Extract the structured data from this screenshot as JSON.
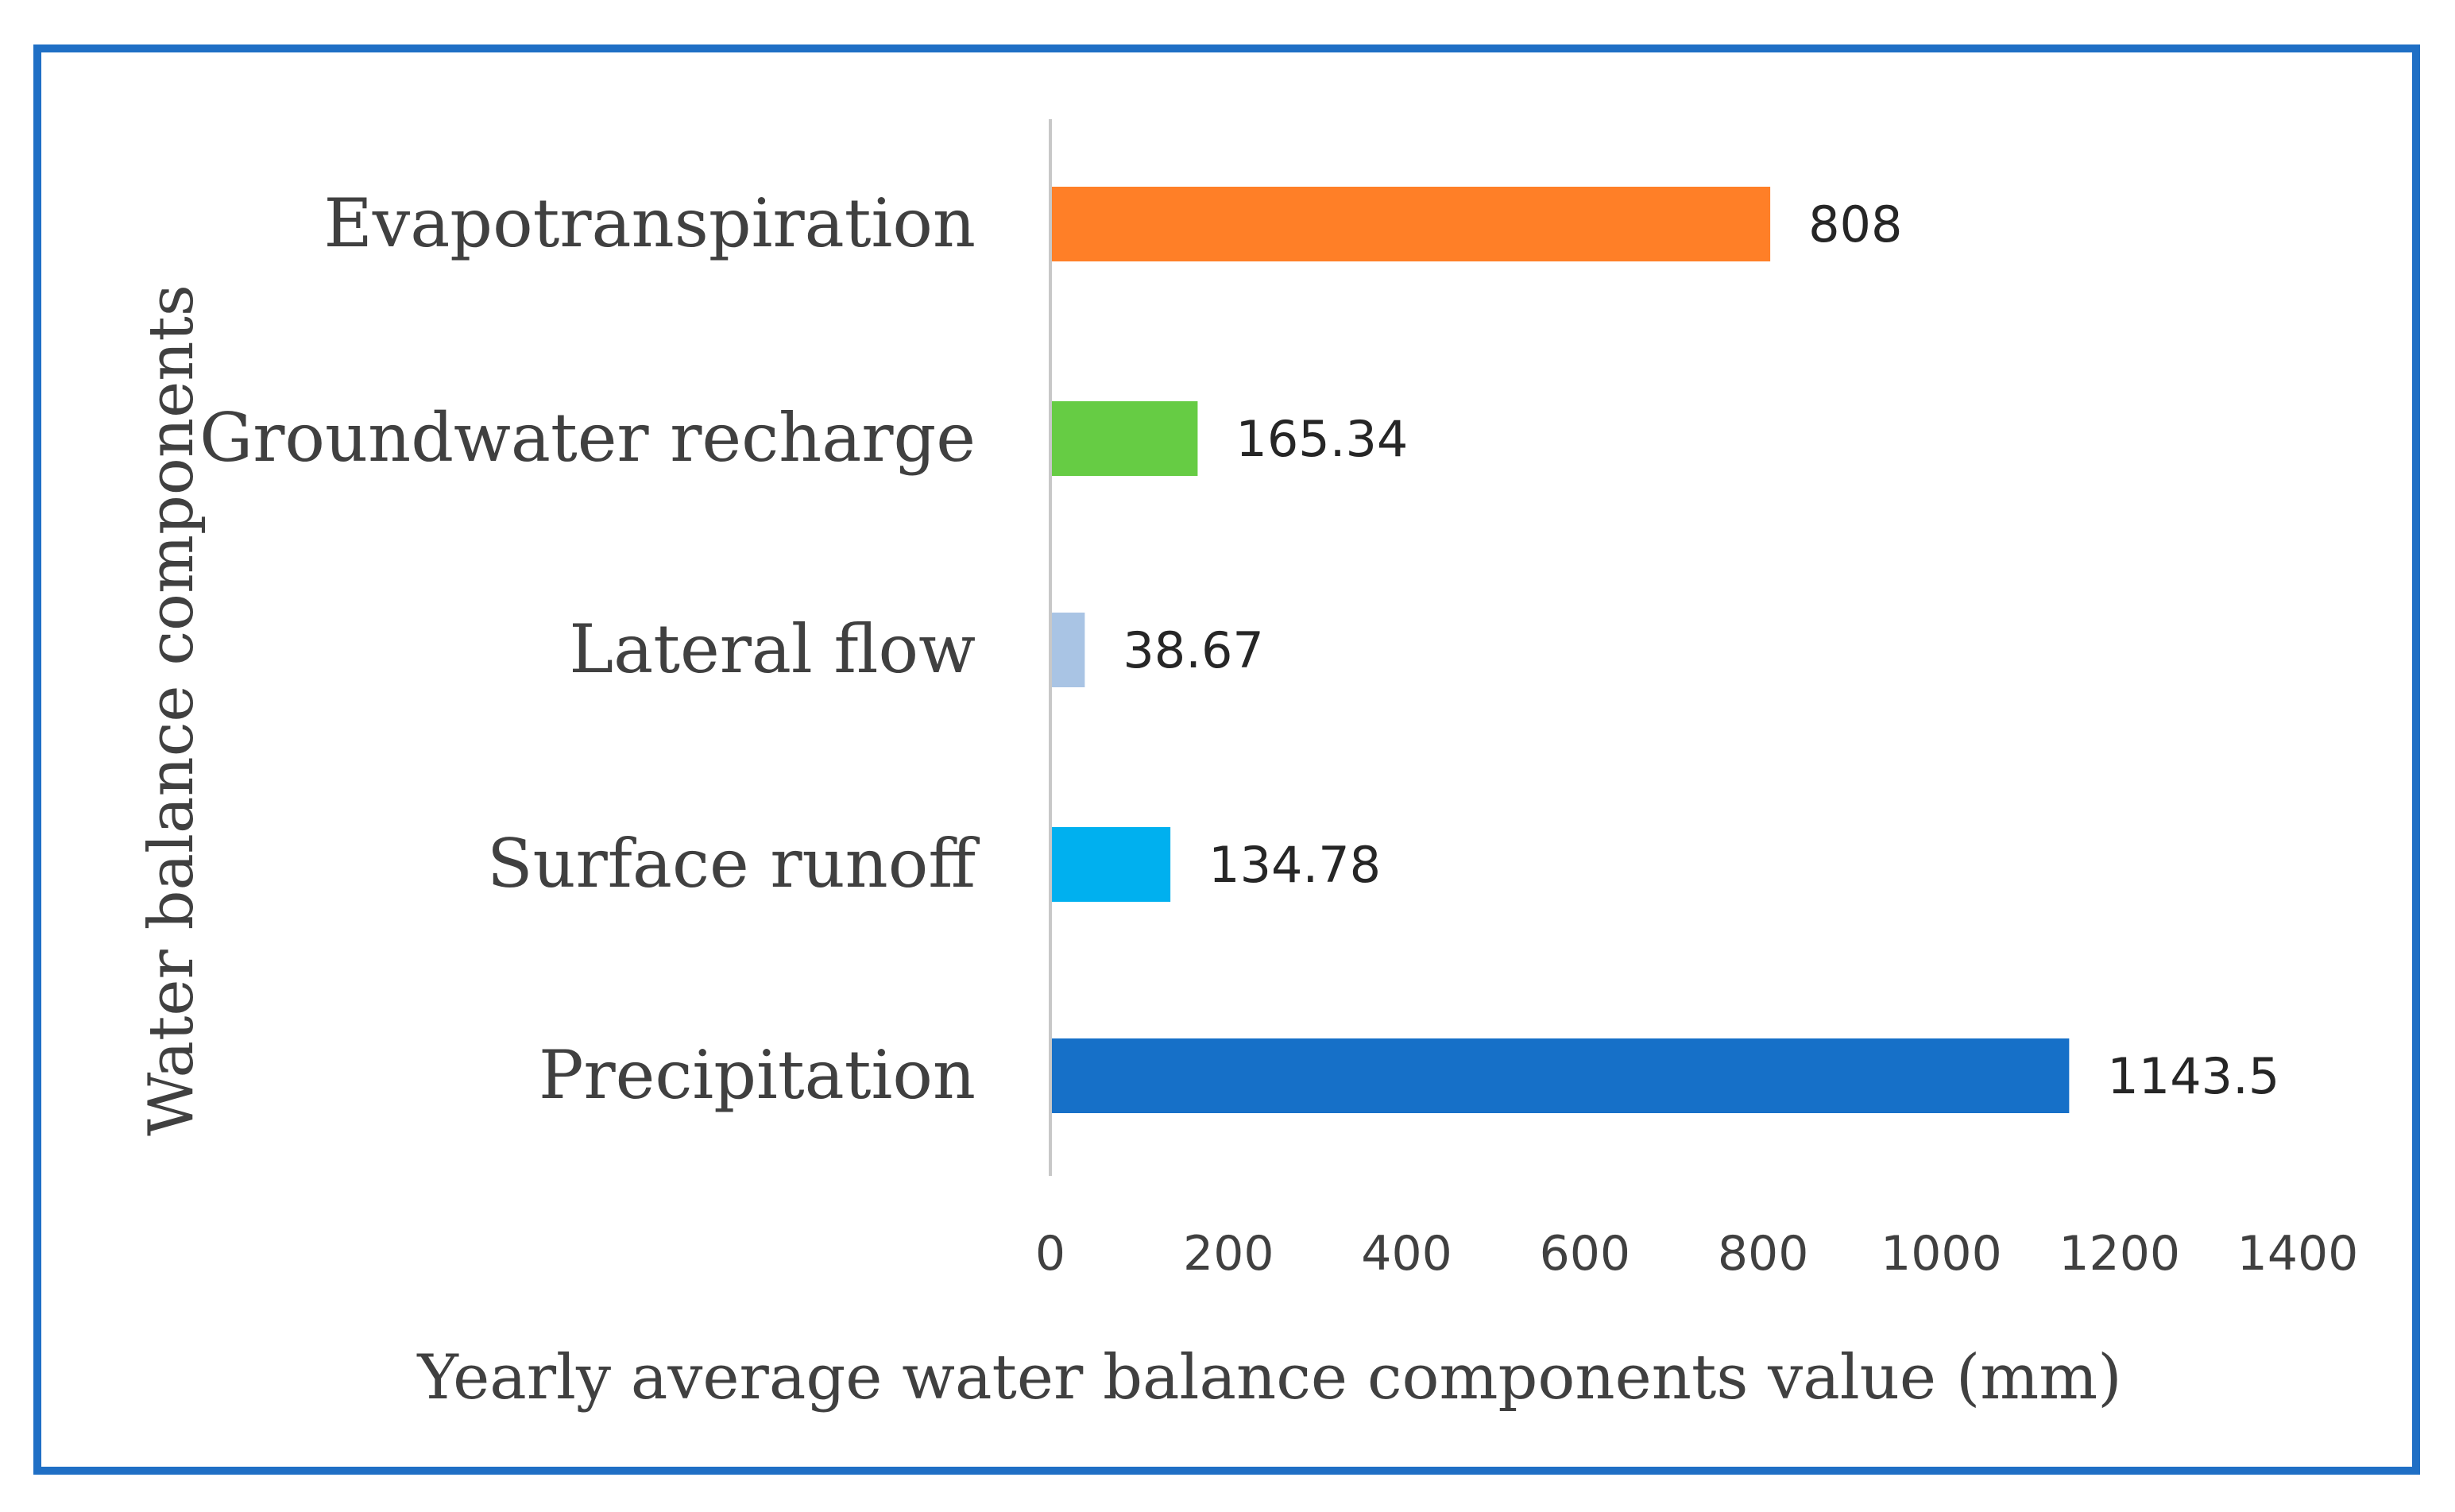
{
  "chart_data": {
    "type": "bar",
    "orientation": "horizontal",
    "categories": [
      "Evapotranspiration",
      "Groundwater recharge",
      "Lateral flow",
      "Surface runoff",
      "Precipitation"
    ],
    "values": [
      808,
      165.34,
      38.67,
      134.78,
      1143.5
    ],
    "value_labels": [
      "808",
      "165.34",
      "38.67",
      "134.78",
      "1143.5"
    ],
    "colors": [
      "#ff7f27",
      "#66cc44",
      "#a9c4e4",
      "#00b0ef",
      "#1670c8"
    ],
    "xlabel": "Yearly average water balance components value (mm)",
    "ylabel": "Water balance components",
    "xlim": [
      0,
      1400
    ],
    "xticks": [
      0,
      200,
      400,
      600,
      800,
      1000,
      1200,
      1400
    ],
    "xtick_labels": [
      "0",
      "200",
      "400",
      "600",
      "800",
      "1000",
      "1200",
      "1400"
    ],
    "grid": false,
    "legend": "none"
  },
  "frame": {
    "border_color": "#1f6fc5"
  }
}
